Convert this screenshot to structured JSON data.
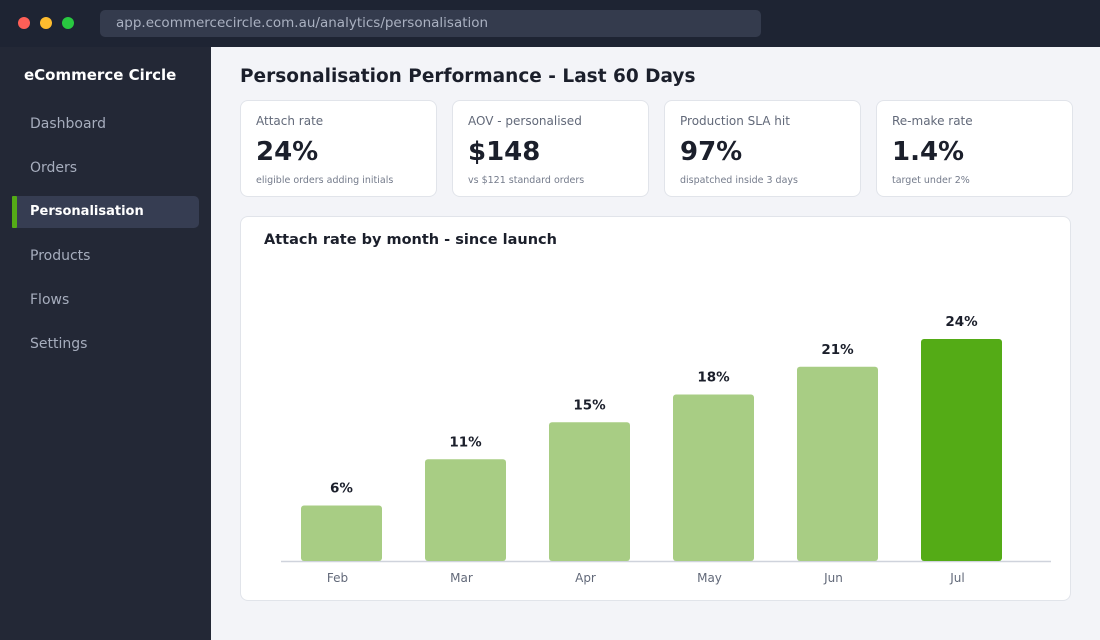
{
  "browser": {
    "url": "app.ecommercecircle.com.au/analytics/personalisation"
  },
  "sidebar": {
    "brand": "eCommerce Circle",
    "items": [
      {
        "label": "Dashboard"
      },
      {
        "label": "Orders"
      },
      {
        "label": "Personalisation"
      },
      {
        "label": "Products"
      },
      {
        "label": "Flows"
      },
      {
        "label": "Settings"
      }
    ],
    "active_index": 2
  },
  "page": {
    "title": "Personalisation Performance - Last 60 Days"
  },
  "kpis": [
    {
      "label": "Attach rate",
      "value": "24%",
      "sub": "eligible orders adding initials"
    },
    {
      "label": "AOV - personalised",
      "value": "$148",
      "sub": "vs $121 standard orders"
    },
    {
      "label": "Production SLA hit",
      "value": "97%",
      "sub": "dispatched inside 3 days"
    },
    {
      "label": "Re-make rate",
      "value": "1.4%",
      "sub": "target under 2%"
    }
  ],
  "colors": {
    "accent": "#54ab16",
    "bar_default": "#a8cd84",
    "bar_highlight": "#54ab16"
  },
  "chart_data": {
    "type": "bar",
    "title": "Attach rate by month - since launch",
    "categories": [
      "Feb",
      "Mar",
      "Apr",
      "May",
      "Jun",
      "Jul"
    ],
    "values": [
      6,
      11,
      15,
      18,
      21,
      24
    ],
    "value_suffix": "%",
    "highlight_index": 5,
    "xlabel": "",
    "ylabel": "",
    "ylim": [
      0,
      24
    ],
    "grid": false
  }
}
